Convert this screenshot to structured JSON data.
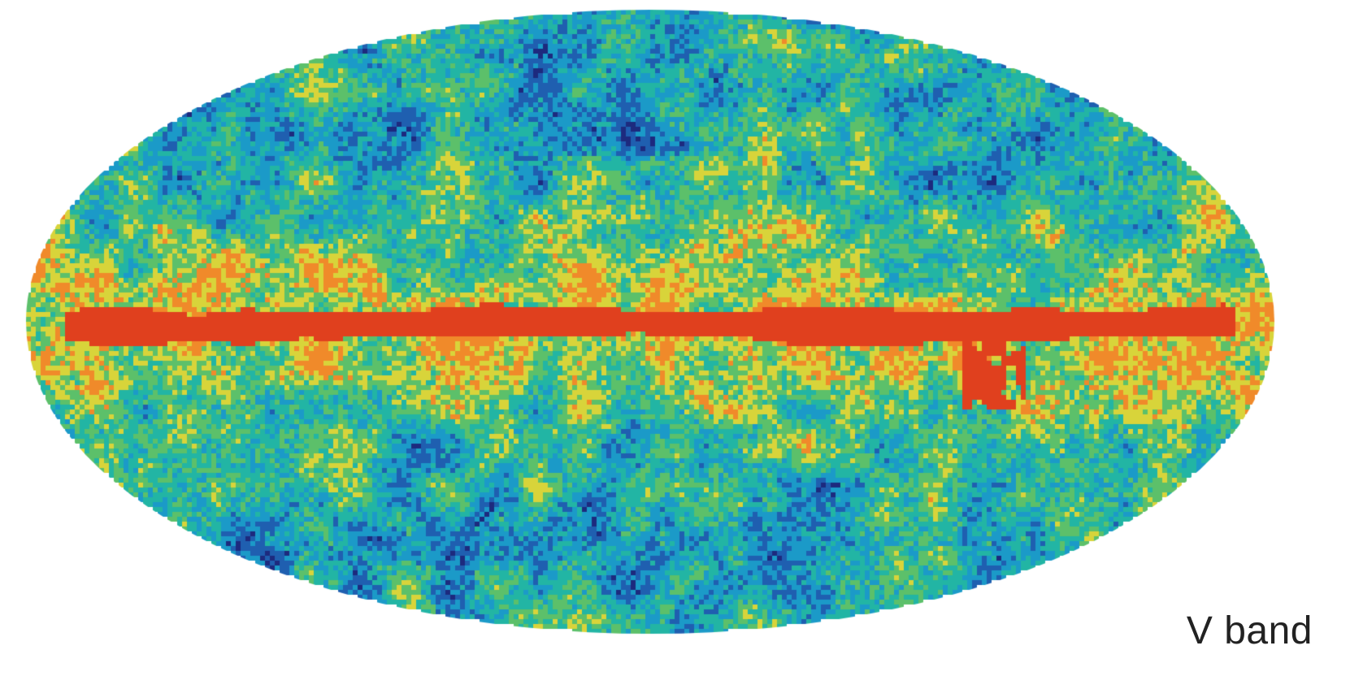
{
  "label": "V band",
  "projection": "mollweide",
  "colormap": [
    "#1d2a7e",
    "#1f5fb0",
    "#1b9ac8",
    "#22b5a4",
    "#5cc06a",
    "#d8d43a",
    "#f08a2a",
    "#e33c20"
  ],
  "galactic_plane_color": "#e0401e",
  "background_color": "#ffffff"
}
